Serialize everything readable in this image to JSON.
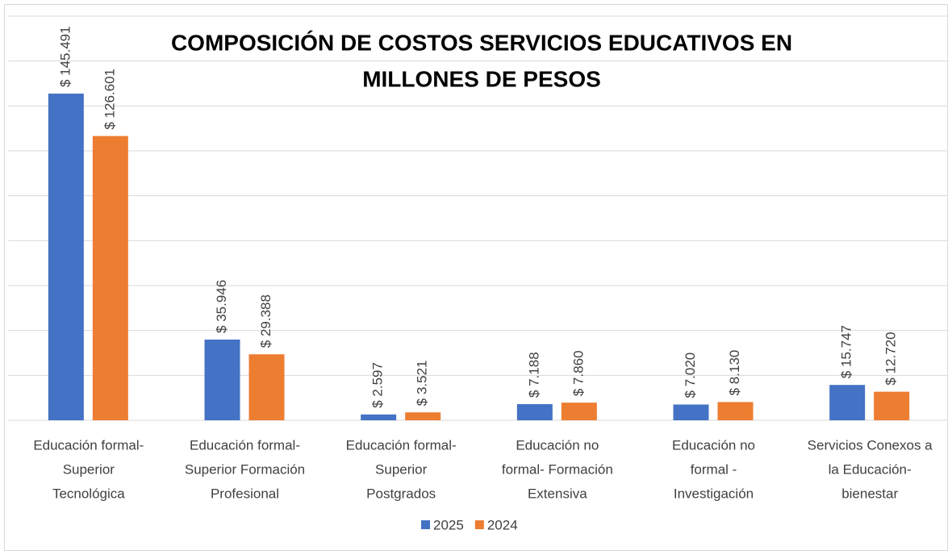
{
  "chart_data": {
    "type": "bar",
    "title": [
      "COMPOSICIÓN DE COSTOS SERVICIOS EDUCATIVOS EN",
      "MILLONES DE PESOS"
    ],
    "categories": [
      [
        "Educación formal-",
        "Superior",
        "Tecnológica"
      ],
      [
        "Educación formal-",
        "Superior Formación",
        "Profesional"
      ],
      [
        "Educación formal-",
        "Superior",
        "Postgrados"
      ],
      [
        "Educación no",
        "formal- Formación",
        "Extensiva"
      ],
      [
        "Educación no",
        "formal -",
        "Investigación"
      ],
      [
        "Servicios Conexos a",
        "la Educación-",
        "bienestar"
      ]
    ],
    "series": [
      {
        "name": "2025",
        "color": "#4472c4",
        "values": [
          145491,
          35946,
          2597,
          7188,
          7020,
          15747
        ],
        "value_labels": [
          "$ 145.491",
          "$ 35.946",
          "$ 2.597",
          "$ 7.188",
          "$ 7.020",
          "$ 15.747"
        ]
      },
      {
        "name": "2024",
        "color": "#ed7d31",
        "values": [
          126601,
          29388,
          3521,
          7860,
          8130,
          12720
        ],
        "value_labels": [
          "$ 126.601",
          "$ 29.388",
          "$ 3.521",
          "$ 7.860",
          "$ 8.130",
          "$ 12.720"
        ]
      }
    ],
    "ylim": [
      0,
      180000
    ],
    "yticks": [
      0,
      20000,
      40000,
      60000,
      80000,
      100000,
      120000,
      140000,
      160000,
      180000
    ],
    "grid": true,
    "legend": "bottom"
  }
}
